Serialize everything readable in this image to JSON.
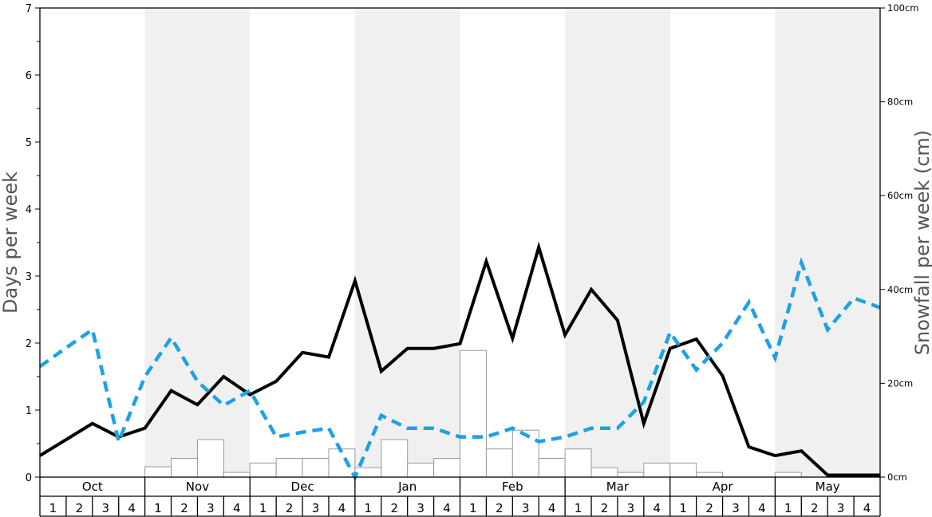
{
  "chart_data": {
    "type": "bar+line",
    "left_axis": {
      "label": "Days per week",
      "ylim": [
        0,
        7
      ],
      "ticks": [
        0,
        1,
        2,
        3,
        4,
        5,
        6,
        7
      ]
    },
    "right_axis": {
      "label": "Snowfall per week (cm)",
      "ylim": [
        0,
        100
      ],
      "ticks": [
        "0cm",
        "20cm",
        "40cm",
        "60cm",
        "80cm",
        "100cm"
      ]
    },
    "months": [
      "Oct",
      "Nov",
      "Dec",
      "Jan",
      "Feb",
      "Mar",
      "Apr",
      "May"
    ],
    "week_labels": [
      "1",
      "2",
      "3",
      "4"
    ],
    "shaded_months": [
      1,
      3,
      5,
      7
    ],
    "colors": {
      "solid_line": "#000000",
      "dashed_line": "#1ea1e5",
      "bars_fill": "#ffffff",
      "bars_stroke": "#999999",
      "shade": "#f0f0f0"
    },
    "series": [
      {
        "kind": "bar",
        "axis": "right",
        "values": [
          0,
          0,
          0,
          0,
          2.2,
          4,
          8,
          1,
          3,
          4,
          4,
          6,
          2,
          8,
          3,
          4,
          27,
          6,
          10,
          4,
          6,
          2,
          1,
          3,
          3,
          1,
          0,
          0,
          1,
          0,
          0,
          0
        ]
      },
      {
        "kind": "line",
        "style": "solid",
        "axis": "left",
        "values": [
          0.32,
          0.56,
          0.8,
          0.6,
          0.73,
          1.29,
          1.08,
          1.5,
          1.23,
          1.43,
          1.86,
          1.79,
          2.93,
          1.58,
          1.92,
          1.92,
          1.99,
          3.22,
          2.07,
          3.43,
          2.12,
          2.8,
          2.34,
          0.8,
          1.92,
          2.06,
          1.51,
          0.45,
          0.32,
          0.39,
          0.03,
          0.03,
          0.03
        ]
      },
      {
        "kind": "line",
        "style": "dashed",
        "axis": "left",
        "values": [
          1.65,
          1.93,
          2.2,
          0.53,
          1.5,
          2.08,
          1.43,
          1.07,
          1.29,
          0.6,
          0.67,
          0.73,
          0.0,
          0.92,
          0.73,
          0.73,
          0.6,
          0.6,
          0.73,
          0.53,
          0.6,
          0.73,
          0.73,
          1.12,
          2.16,
          1.6,
          2.0,
          2.61,
          1.78,
          3.2,
          2.2,
          2.67,
          2.53
        ]
      }
    ]
  }
}
